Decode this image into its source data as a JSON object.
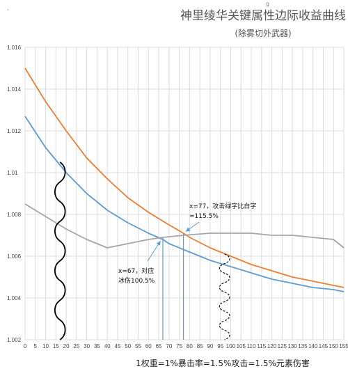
{
  "chart_data": {
    "type": "line",
    "title": "神里绫华关键属性边际收益曲线",
    "subtitle": "(除雾切外武器)",
    "xlabel": "1权重=1%暴击率=1.5%攻击=1.5%元素伤害",
    "ylabel": "",
    "xlim": [
      0,
      155
    ],
    "ylim": [
      1.002,
      1.016
    ],
    "grid": true,
    "x_ticks": [
      "0",
      "5",
      "10",
      "15",
      "20",
      "25",
      "30",
      "35",
      "40",
      "45",
      "50",
      "55",
      "60",
      "65",
      "70",
      "75",
      "80",
      "85",
      "90",
      "95",
      "100",
      "105",
      "110",
      "115",
      "120",
      "125",
      "130",
      "135",
      "140",
      "145",
      "150",
      "155"
    ],
    "y_ticks": [
      "1.002",
      "1.004",
      "1.006",
      "1.008",
      "1.01",
      "1.012",
      "1.014",
      "1.016"
    ],
    "series": [
      {
        "color": "#ed7d31",
        "x": [
          0,
          10,
          20,
          30,
          40,
          50,
          60,
          70,
          77,
          80,
          90,
          100,
          110,
          120,
          130,
          140,
          150,
          155
        ],
        "y": [
          1.015,
          1.0134,
          1.012,
          1.0107,
          1.0097,
          1.0088,
          1.0081,
          1.0075,
          1.0071,
          1.0069,
          1.0064,
          1.006,
          1.0056,
          1.0053,
          1.005,
          1.0048,
          1.0046,
          1.0045
        ]
      },
      {
        "color": "#5b9bd5",
        "x": [
          0,
          10,
          20,
          30,
          40,
          50,
          60,
          67,
          70,
          80,
          90,
          100,
          110,
          120,
          130,
          140,
          150,
          155
        ],
        "y": [
          1.0127,
          1.0112,
          1.01,
          1.009,
          1.0082,
          1.0076,
          1.0071,
          1.0068,
          1.0066,
          1.0062,
          1.0058,
          1.0055,
          1.0052,
          1.0049,
          1.0047,
          1.0045,
          1.0044,
          1.0043
        ]
      },
      {
        "color": "#a5a5a5",
        "x": [
          0,
          10,
          20,
          30,
          40,
          50,
          60,
          67,
          77,
          90,
          100,
          110,
          120,
          130,
          140,
          150,
          155
        ],
        "y": [
          1.0085,
          1.0079,
          1.0073,
          1.0068,
          1.0064,
          1.0066,
          1.0068,
          1.0069,
          1.007,
          1.0071,
          1.0071,
          1.0071,
          1.007,
          1.007,
          1.0069,
          1.0068,
          1.0064
        ]
      }
    ],
    "drop_lines": [
      {
        "x": 67,
        "y": 1.0069,
        "color": "#5b9bd5"
      },
      {
        "x": 77,
        "y": 1.0071,
        "color": "#5b9bd5"
      }
    ],
    "annotations": [
      {
        "lines": [
          "x=77，攻击绿字比白字",
          "=115.5%"
        ],
        "point": {
          "x": 77,
          "y": 1.0071
        }
      },
      {
        "lines": [
          "x=67，对应",
          "冰伤100.5%"
        ],
        "point": {
          "x": 67,
          "y": 1.0069
        }
      }
    ],
    "wiggles": [
      {
        "x": 17,
        "y_top": 1.0105,
        "y_bottom": 1.002,
        "style": "solid"
      },
      {
        "x": 97,
        "y_top": 1.0061,
        "y_bottom": 1.002,
        "style": "dashed"
      }
    ],
    "stray_marks": [
      ",",
      "g"
    ]
  },
  "colors": {
    "orange": "#ed7d31",
    "blue": "#5b9bd5",
    "gray": "#a5a5a5",
    "grid": "#dcdcdc"
  }
}
